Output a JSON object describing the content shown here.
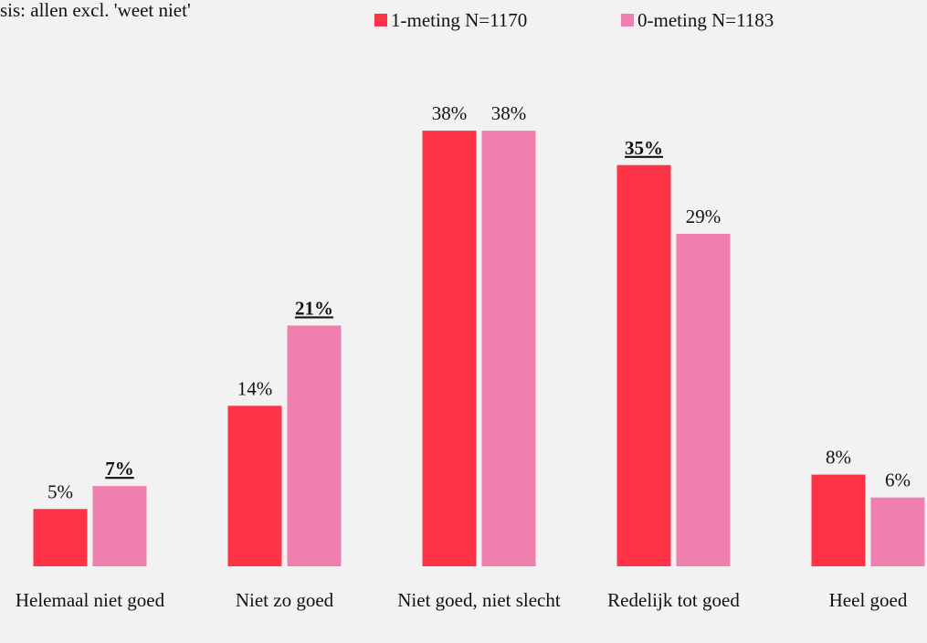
{
  "chart_data": {
    "type": "bar",
    "subtitle": "sis: allen excl. 'weet niet'",
    "categories": [
      "Helemaal niet goed",
      "Niet zo goed",
      "Niet goed, niet slecht",
      "Redelijk tot goed",
      "Heel goed"
    ],
    "series": [
      {
        "name": "1-meting N=1170",
        "color": "#ff3347",
        "values": [
          5,
          14,
          38,
          35,
          8
        ],
        "value_labels": [
          "5%",
          "14%",
          "38%",
          "35%",
          "8%"
        ],
        "emphasis": [
          false,
          false,
          false,
          true,
          false
        ]
      },
      {
        "name": "0-meting N=1183",
        "color": "#ef7fae",
        "values": [
          7,
          21,
          38,
          29,
          6
        ],
        "value_labels": [
          "7%",
          "21%",
          "38%",
          "29%",
          "6%"
        ],
        "emphasis": [
          true,
          true,
          false,
          false,
          false
        ]
      }
    ],
    "ylim": [
      0,
      40
    ]
  }
}
